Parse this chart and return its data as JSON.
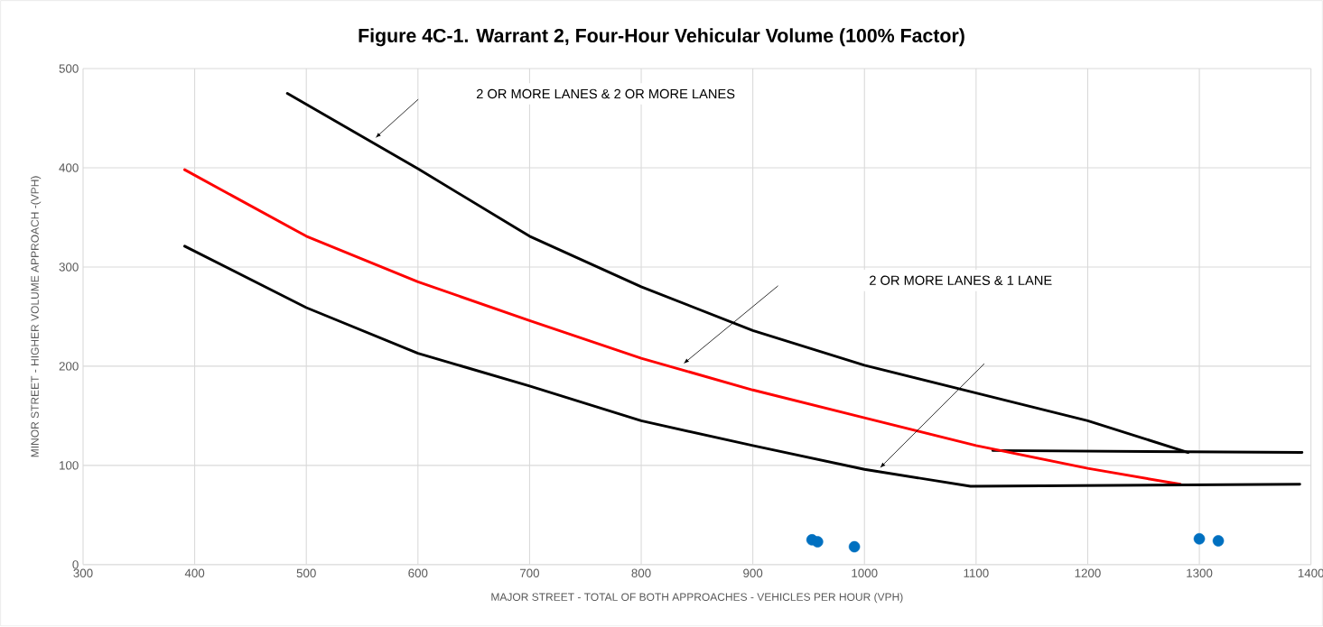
{
  "chart_data": {
    "type": "line",
    "title": "Figure 4C-1. Warrant 2, Four-Hour Vehicular Volume (100% Factor)",
    "xlabel": "MAJOR STREET - TOTAL OF BOTH APPROACHES - VEHICLES PER HOUR (VPH)",
    "ylabel": "MINOR STREET - HIGHER VOLUME APPROACH -(VPH)",
    "xlim": [
      300,
      1400
    ],
    "ylim": [
      0,
      500
    ],
    "xticks": [
      300,
      400,
      500,
      600,
      700,
      800,
      900,
      1000,
      1100,
      1200,
      1300,
      1400
    ],
    "yticks": [
      0,
      100,
      200,
      300,
      400,
      500
    ],
    "grid": true,
    "marker": "none",
    "line_style": "solid",
    "series": [
      {
        "color": "#000000",
        "x": [
          483,
          600,
          700,
          800,
          900,
          1000,
          1100,
          1200,
          1290
        ],
        "values": [
          475,
          399,
          331,
          280,
          236,
          201,
          173,
          145,
          113
        ]
      },
      {
        "color": "#000000",
        "x": [
          1115,
          1392
        ],
        "values": [
          115,
          113
        ]
      },
      {
        "color": "#ff0000",
        "x": [
          391,
          500,
          600,
          700,
          800,
          900,
          1000,
          1100,
          1200,
          1283
        ],
        "values": [
          398,
          331,
          285,
          246,
          208,
          176,
          148,
          120,
          97,
          81
        ]
      },
      {
        "color": "#000000",
        "x": [
          391,
          500,
          600,
          700,
          800,
          900,
          1000,
          1095,
          1390
        ],
        "values": [
          321,
          259,
          213,
          180,
          145,
          120,
          96,
          79,
          81
        ]
      },
      {
        "type": "scatter",
        "marker": "circle",
        "color": "#0070c0",
        "x": [
          953,
          958,
          991,
          1300,
          1317
        ],
        "values": [
          25,
          23,
          18,
          26,
          24
        ]
      }
    ],
    "annotations": [
      "2 OR MORE LANES & 2 OR MORE LANES",
      "2 OR MORE LANES & 1 LANE"
    ]
  }
}
